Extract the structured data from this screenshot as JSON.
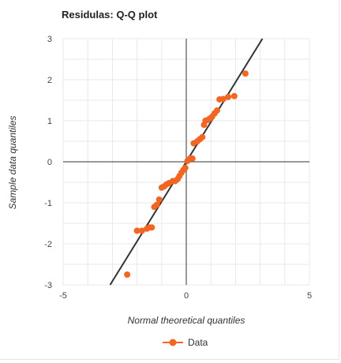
{
  "chart_data": {
    "type": "scatter",
    "title": "Residulas: Q-Q plot",
    "xlabel": "Normal theoretical quantiles",
    "ylabel": "Sample data quantiles",
    "xlim": [
      -5,
      5
    ],
    "ylim": [
      -3,
      3
    ],
    "x_ticks": [
      -5,
      0,
      5
    ],
    "y_ticks": [
      -3,
      -2,
      -1,
      0,
      1,
      2,
      3
    ],
    "grid": true,
    "legend_position": "bottom",
    "colors": {
      "data": "#f26522",
      "reference_line": "#333333",
      "grid": "#e8e8e8",
      "axis": "#333333"
    },
    "series": [
      {
        "name": "Data",
        "points": [
          [
            -2.4,
            -2.75
          ],
          [
            -2.0,
            -1.68
          ],
          [
            -1.8,
            -1.68
          ],
          [
            -1.6,
            -1.63
          ],
          [
            -1.5,
            -1.6
          ],
          [
            -1.4,
            -1.6
          ],
          [
            -1.3,
            -1.1
          ],
          [
            -1.2,
            -1.05
          ],
          [
            -1.1,
            -0.92
          ],
          [
            -1.0,
            -0.63
          ],
          [
            -0.9,
            -0.6
          ],
          [
            -0.8,
            -0.55
          ],
          [
            -0.7,
            -0.52
          ],
          [
            -0.55,
            -0.47
          ],
          [
            -0.45,
            -0.47
          ],
          [
            -0.35,
            -0.42
          ],
          [
            -0.28,
            -0.35
          ],
          [
            -0.2,
            -0.27
          ],
          [
            -0.12,
            -0.2
          ],
          [
            -0.04,
            -0.15
          ],
          [
            0.05,
            0.02
          ],
          [
            0.15,
            0.08
          ],
          [
            0.25,
            0.08
          ],
          [
            0.3,
            0.45
          ],
          [
            0.45,
            0.5
          ],
          [
            0.55,
            0.55
          ],
          [
            0.65,
            0.6
          ],
          [
            0.72,
            0.9
          ],
          [
            0.78,
            1.0
          ],
          [
            0.88,
            1.02
          ],
          [
            0.95,
            1.05
          ],
          [
            1.05,
            1.1
          ],
          [
            1.15,
            1.18
          ],
          [
            1.25,
            1.25
          ],
          [
            1.35,
            1.52
          ],
          [
            1.5,
            1.53
          ],
          [
            1.7,
            1.58
          ],
          [
            1.95,
            1.6
          ],
          [
            2.4,
            2.15
          ]
        ]
      }
    ],
    "reference_line": {
      "slope": 0.97,
      "intercept": 0.0
    }
  }
}
